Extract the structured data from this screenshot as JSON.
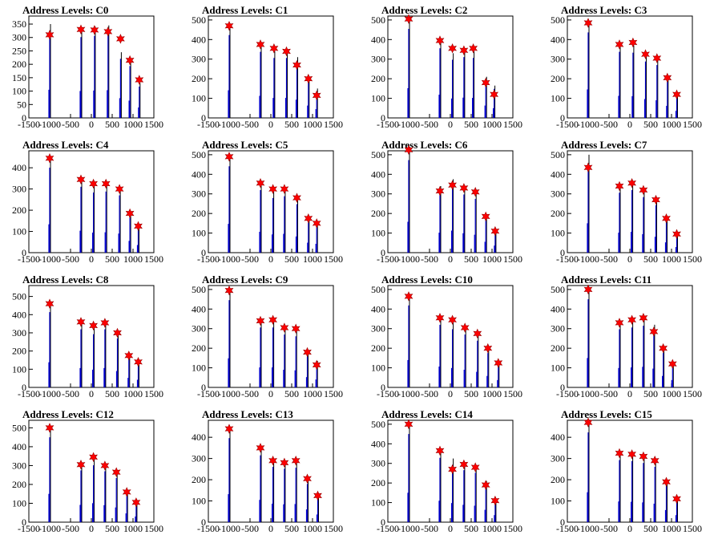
{
  "page": {
    "title_prefix": "Address Levels: "
  },
  "chart_data": [
    {
      "type": "bar",
      "title": "Address Levels: C0",
      "xlim": [
        -1500,
        1500
      ],
      "ylim": [
        0,
        380
      ],
      "xticks": [
        -1500,
        -1000,
        -500,
        0,
        500,
        1000,
        1500
      ],
      "yticks": [
        0,
        50,
        100,
        150,
        200,
        250,
        300,
        350
      ],
      "peaks_x": [
        -1000,
        -250,
        75,
        400,
        700,
        925,
        1150
      ],
      "peaks_y": [
        310,
        330,
        328,
        322,
        295,
        215,
        142
      ],
      "bar_heights": [
        350,
        335,
        340,
        345,
        245,
        215,
        130
      ]
    },
    {
      "type": "bar",
      "title": "Address Levels: C1",
      "xlim": [
        -1500,
        1500
      ],
      "ylim": [
        0,
        520
      ],
      "xticks": [
        -1500,
        -1000,
        -500,
        0,
        500,
        1000,
        1500
      ],
      "yticks": [
        0,
        100,
        200,
        300,
        400,
        500
      ],
      "peaks_x": [
        -1000,
        -250,
        75,
        375,
        625,
        900,
        1100
      ],
      "peaks_y": [
        470,
        375,
        355,
        340,
        270,
        200,
        115
      ],
      "bar_heights": [
        470,
        375,
        340,
        340,
        310,
        210,
        150
      ]
    },
    {
      "type": "bar",
      "title": "Address Levels: C2",
      "xlim": [
        -1500,
        1500
      ],
      "ylim": [
        0,
        520
      ],
      "xticks": [
        -1500,
        -1000,
        -500,
        0,
        500,
        1000,
        1500
      ],
      "yticks": [
        0,
        100,
        200,
        300,
        400,
        500
      ],
      "peaks_x": [
        -1000,
        -250,
        50,
        325,
        550,
        850,
        1050
      ],
      "peaks_y": [
        505,
        395,
        355,
        345,
        355,
        180,
        120
      ],
      "bar_heights": [
        505,
        395,
        330,
        345,
        340,
        210,
        165
      ]
    },
    {
      "type": "bar",
      "title": "Address Levels: C3",
      "xlim": [
        -1500,
        1500
      ],
      "ylim": [
        0,
        520
      ],
      "xticks": [
        -1500,
        -1000,
        -500,
        0,
        500,
        1000,
        1500
      ],
      "yticks": [
        0,
        100,
        200,
        300,
        400,
        500
      ],
      "peaks_x": [
        -1000,
        -250,
        75,
        375,
        650,
        900,
        1125
      ],
      "peaks_y": [
        485,
        375,
        385,
        325,
        305,
        205,
        120
      ],
      "bar_heights": [
        485,
        375,
        370,
        320,
        300,
        205,
        120
      ]
    },
    {
      "type": "bar",
      "title": "Address Levels: C4",
      "xlim": [
        -1500,
        1500
      ],
      "ylim": [
        0,
        480
      ],
      "xticks": [
        -1500,
        -1000,
        -500,
        0,
        500,
        1000,
        1500
      ],
      "yticks": [
        0,
        100,
        200,
        300,
        400
      ],
      "peaks_x": [
        -1000,
        -250,
        50,
        350,
        675,
        925,
        1125
      ],
      "peaks_y": [
        445,
        345,
        325,
        325,
        300,
        185,
        125
      ],
      "bar_heights": [
        445,
        345,
        315,
        320,
        300,
        185,
        120
      ]
    },
    {
      "type": "bar",
      "title": "Address Levels: C5",
      "xlim": [
        -1500,
        1500
      ],
      "ylim": [
        0,
        520
      ],
      "xticks": [
        -1500,
        -1000,
        -500,
        0,
        500,
        1000,
        1500
      ],
      "yticks": [
        0,
        100,
        200,
        300,
        400,
        500
      ],
      "peaks_x": [
        -1000,
        -250,
        50,
        325,
        625,
        900,
        1100
      ],
      "peaks_y": [
        490,
        355,
        325,
        325,
        280,
        175,
        150
      ],
      "bar_heights": [
        490,
        355,
        310,
        320,
        275,
        170,
        150
      ]
    },
    {
      "type": "bar",
      "title": "Address Levels: C6",
      "xlim": [
        -1500,
        1500
      ],
      "ylim": [
        0,
        520
      ],
      "xticks": [
        -1500,
        -1000,
        -500,
        0,
        500,
        1000,
        1500
      ],
      "yticks": [
        0,
        100,
        200,
        300,
        400,
        500
      ],
      "peaks_x": [
        -1000,
        -250,
        50,
        325,
        600,
        850,
        1075
      ],
      "peaks_y": [
        525,
        315,
        345,
        330,
        310,
        185,
        110
      ],
      "bar_heights": [
        525,
        340,
        375,
        330,
        305,
        185,
        120
      ]
    },
    {
      "type": "bar",
      "title": "Address Levels: C7",
      "xlim": [
        -1500,
        1500
      ],
      "ylim": [
        0,
        520
      ],
      "xticks": [
        -1500,
        -1000,
        -500,
        0,
        500,
        1000,
        1500
      ],
      "yticks": [
        0,
        100,
        200,
        300,
        400,
        500
      ],
      "peaks_x": [
        -1000,
        -250,
        50,
        325,
        625,
        875,
        1125
      ],
      "peaks_y": [
        435,
        340,
        355,
        320,
        270,
        175,
        95
      ],
      "bar_heights": [
        500,
        340,
        355,
        315,
        270,
        175,
        95
      ]
    },
    {
      "type": "bar",
      "title": "Address Levels: C8",
      "xlim": [
        -1500,
        1500
      ],
      "ylim": [
        0,
        560
      ],
      "xticks": [
        -1500,
        -1000,
        -500,
        0,
        500,
        1000,
        1500
      ],
      "yticks": [
        0,
        100,
        200,
        300,
        400,
        500
      ],
      "peaks_x": [
        -1000,
        -250,
        50,
        325,
        625,
        900,
        1125
      ],
      "peaks_y": [
        460,
        360,
        340,
        355,
        300,
        175,
        140
      ],
      "bar_heights": [
        460,
        355,
        325,
        355,
        300,
        175,
        140
      ]
    },
    {
      "type": "bar",
      "title": "Address Levels: C9",
      "xlim": [
        -1500,
        1500
      ],
      "ylim": [
        0,
        520
      ],
      "xticks": [
        -1500,
        -1000,
        -500,
        0,
        500,
        1000,
        1500
      ],
      "yticks": [
        0,
        100,
        200,
        300,
        400,
        500
      ],
      "peaks_x": [
        -1000,
        -250,
        50,
        325,
        600,
        875,
        1100
      ],
      "peaks_y": [
        495,
        340,
        345,
        305,
        300,
        180,
        115
      ],
      "bar_heights": [
        495,
        340,
        340,
        300,
        290,
        175,
        135
      ]
    },
    {
      "type": "bar",
      "title": "Address Levels: C10",
      "xlim": [
        -1500,
        1500
      ],
      "ylim": [
        0,
        520
      ],
      "xticks": [
        -1500,
        -1000,
        -500,
        0,
        500,
        1000,
        1500
      ],
      "yticks": [
        0,
        100,
        200,
        300,
        400,
        500
      ],
      "peaks_x": [
        -1000,
        -250,
        50,
        350,
        650,
        900,
        1150
      ],
      "peaks_y": [
        465,
        355,
        345,
        305,
        275,
        200,
        125
      ],
      "bar_heights": [
        465,
        355,
        330,
        300,
        265,
        195,
        125
      ]
    },
    {
      "type": "bar",
      "title": "Address Levels: C11",
      "xlim": [
        -1500,
        1500
      ],
      "ylim": [
        0,
        520
      ],
      "xticks": [
        -1500,
        -1000,
        -500,
        0,
        500,
        1000,
        1500
      ],
      "yticks": [
        0,
        100,
        200,
        300,
        400,
        500
      ],
      "peaks_x": [
        -1000,
        -250,
        50,
        325,
        575,
        800,
        1025
      ],
      "peaks_y": [
        500,
        330,
        345,
        355,
        285,
        200,
        120
      ],
      "bar_heights": [
        500,
        330,
        340,
        350,
        320,
        195,
        125
      ]
    },
    {
      "type": "bar",
      "title": "Address Levels: C12",
      "xlim": [
        -1500,
        1500
      ],
      "ylim": [
        0,
        540
      ],
      "xticks": [
        -1500,
        -1000,
        -500,
        0,
        500,
        1000,
        1500
      ],
      "yticks": [
        0,
        100,
        200,
        300,
        400,
        500
      ],
      "peaks_x": [
        -1000,
        -250,
        50,
        325,
        600,
        850,
        1075
      ],
      "peaks_y": [
        500,
        305,
        345,
        300,
        265,
        160,
        105
      ],
      "bar_heights": [
        500,
        305,
        335,
        300,
        260,
        155,
        100
      ]
    },
    {
      "type": "bar",
      "title": "Address Levels: C13",
      "xlim": [
        -1500,
        1500
      ],
      "ylim": [
        0,
        480
      ],
      "xticks": [
        -1500,
        -1000,
        -500,
        0,
        500,
        1000,
        1500
      ],
      "yticks": [
        0,
        100,
        200,
        300,
        400
      ],
      "peaks_x": [
        -1000,
        -250,
        50,
        325,
        600,
        875,
        1125
      ],
      "peaks_y": [
        440,
        350,
        290,
        280,
        290,
        205,
        125
      ],
      "bar_heights": [
        440,
        350,
        290,
        280,
        285,
        200,
        120
      ]
    },
    {
      "type": "bar",
      "title": "Address Levels: C14",
      "xlim": [
        -1500,
        1500
      ],
      "ylim": [
        0,
        520
      ],
      "xticks": [
        -1500,
        -1000,
        -500,
        0,
        500,
        1000,
        1500
      ],
      "yticks": [
        0,
        100,
        200,
        300,
        400,
        500
      ],
      "peaks_x": [
        -1000,
        -250,
        50,
        325,
        600,
        850,
        1075
      ],
      "peaks_y": [
        500,
        365,
        270,
        295,
        280,
        190,
        110
      ],
      "bar_heights": [
        500,
        365,
        325,
        295,
        280,
        210,
        120
      ]
    },
    {
      "type": "bar",
      "title": "Address Levels: C15",
      "xlim": [
        -1500,
        1500
      ],
      "ylim": [
        0,
        480
      ],
      "xticks": [
        -1500,
        -1000,
        -500,
        0,
        500,
        1000,
        1500
      ],
      "yticks": [
        0,
        100,
        200,
        300,
        400
      ],
      "peaks_x": [
        -1000,
        -250,
        50,
        325,
        600,
        875,
        1125
      ],
      "peaks_y": [
        470,
        325,
        320,
        310,
        290,
        190,
        110
      ],
      "bar_heights": [
        470,
        325,
        320,
        310,
        290,
        190,
        110
      ]
    }
  ]
}
